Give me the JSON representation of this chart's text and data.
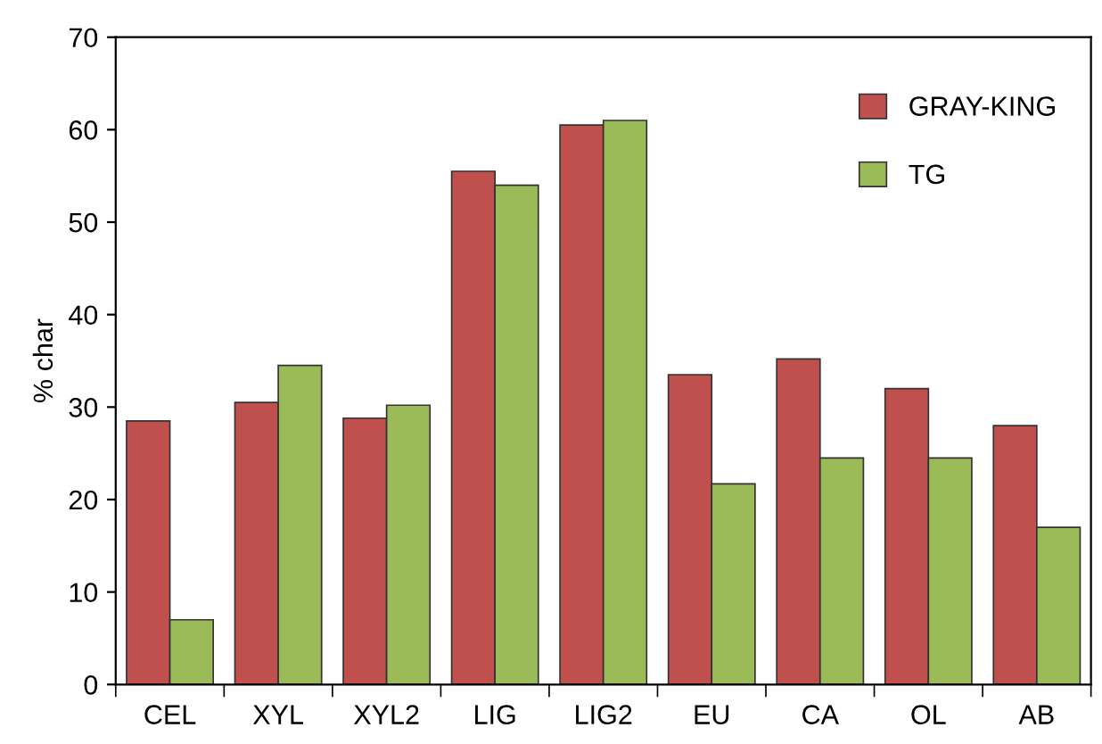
{
  "chart_data": {
    "type": "bar",
    "ylabel": "% char",
    "categories": [
      "CEL",
      "XYL",
      "XYL2",
      "LIG",
      "LIG2",
      "EU",
      "CA",
      "OL",
      "AB"
    ],
    "series": [
      {
        "name": "GRAY-KING",
        "color": "#c0504d",
        "values": [
          28.5,
          30.5,
          28.8,
          55.5,
          60.5,
          33.5,
          35.2,
          32,
          28
        ]
      },
      {
        "name": "TG",
        "color": "#9bbb59",
        "values": [
          7,
          34.5,
          30.2,
          54,
          61,
          21.7,
          24.5,
          24.5,
          17
        ]
      }
    ],
    "ylim": [
      0,
      70
    ],
    "yticks": [
      0,
      10,
      20,
      30,
      40,
      50,
      60,
      70
    ],
    "legend": "top right",
    "grid": false
  }
}
